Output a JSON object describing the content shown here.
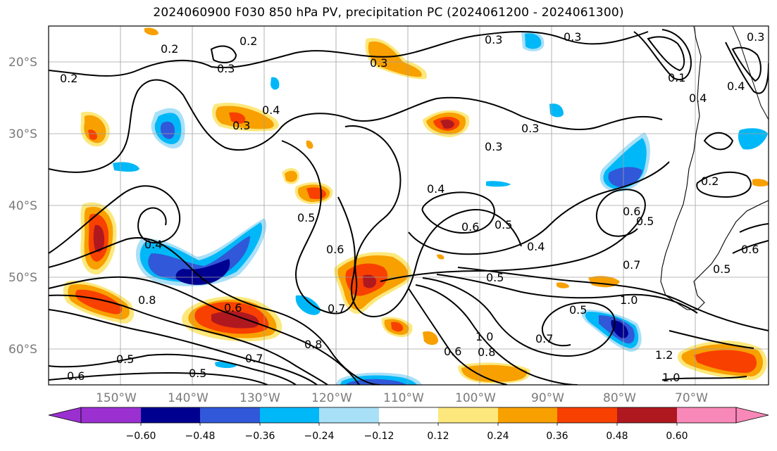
{
  "title": "2024060900 F030 850 hPa PV, precipitation PC (2024061200 - 2024061300)",
  "lat_labels": [
    "20°S",
    "30°S",
    "40°S",
    "50°S",
    "60°S"
  ],
  "lon_labels": [
    "150°W",
    "140°W",
    "130°W",
    "120°W",
    "110°W",
    "100°W",
    "90°W",
    "80°W",
    "70°W"
  ],
  "contour_labels": [
    "0.2",
    "0.2",
    "0.2",
    "0.3",
    "0.3",
    "0.3",
    "0.4",
    "0.3",
    "0.3",
    "0.3",
    "0.3",
    "0.4",
    "0.5",
    "0.6",
    "0.6",
    "0.5",
    "0.4",
    "0.5",
    "0.4",
    "0.6",
    "0.5",
    "0.2",
    "0.4",
    "0.8",
    "0.6",
    "0.7",
    "0.8",
    "0.5",
    "0.5",
    "0.7",
    "0.6",
    "1.0",
    "0.8",
    "0.7",
    "0.6",
    "1.0",
    "0.7",
    "1.2",
    "1.0",
    "0.5",
    "0.6",
    "0.3",
    "0.4",
    "0.1",
    "0.5"
  ],
  "colorbar": {
    "ticks": [
      "−0.60",
      "−0.48",
      "−0.36",
      "−0.24",
      "−0.12",
      "0.12",
      "0.24",
      "0.36",
      "0.48",
      "0.60"
    ],
    "colors": [
      "#9b30d0",
      "#000090",
      "#3058d8",
      "#00b8f8",
      "#a8e0f8",
      "#ffffff",
      "#fce87c",
      "#f8a000",
      "#f84000",
      "#b01820",
      "#f888b8"
    ]
  }
}
